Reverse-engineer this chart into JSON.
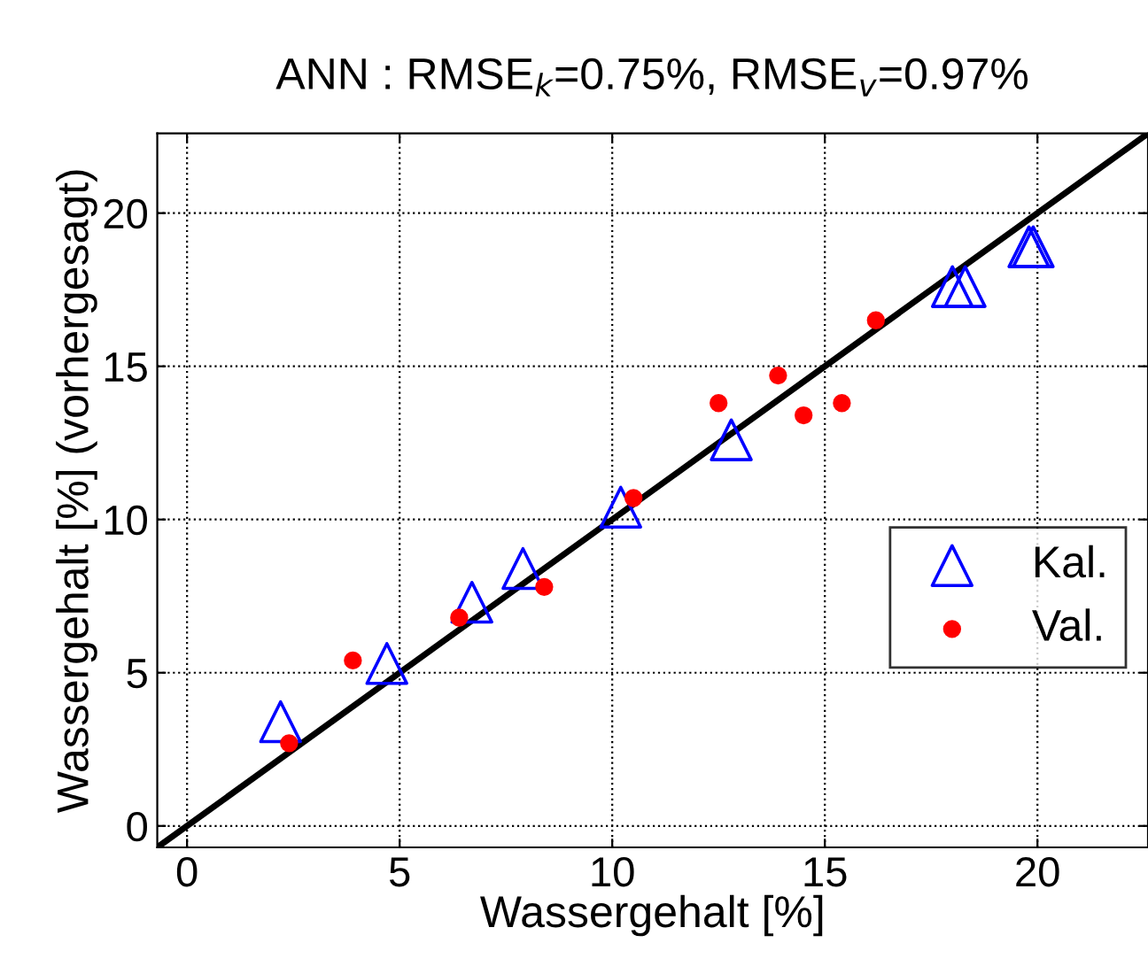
{
  "chart_data": {
    "type": "scatter",
    "title": "ANN : RMSE$_{k}$=0.75%, RMSE$_{v}$=0.97%",
    "xlabel": "Wassergehalt [%]",
    "ylabel": "Wassergehalt [%] (vorhergesagt)",
    "xlim": [
      -0.7,
      22.6
    ],
    "ylim": [
      -0.7,
      22.6
    ],
    "xticks": [
      0,
      5,
      10,
      15,
      20
    ],
    "yticks": [
      0,
      5,
      10,
      15,
      20
    ],
    "grid": true,
    "legend": "right",
    "series": [
      {
        "name": "Kal.",
        "marker": "triangle",
        "color": "#0000ff",
        "x": [
          2.2,
          4.7,
          6.7,
          7.9,
          10.2,
          12.8,
          18.0,
          18.3,
          19.8,
          19.9
        ],
        "values": [
          3.4,
          5.3,
          7.3,
          8.4,
          10.4,
          12.6,
          17.6,
          17.6,
          18.9,
          18.9
        ]
      },
      {
        "name": "Val.",
        "marker": "circle",
        "color": "#ff0000",
        "x": [
          2.4,
          3.9,
          6.4,
          8.4,
          10.5,
          12.5,
          13.9,
          14.5,
          15.4,
          16.2
        ],
        "values": [
          2.7,
          5.4,
          6.8,
          7.8,
          10.7,
          13.8,
          14.7,
          13.4,
          13.8,
          16.5
        ]
      },
      {
        "type": "line",
        "color": "#000000",
        "line_style": "solid",
        "x": [
          -0.7,
          22.6
        ],
        "values": [
          -0.7,
          22.6
        ]
      }
    ]
  }
}
